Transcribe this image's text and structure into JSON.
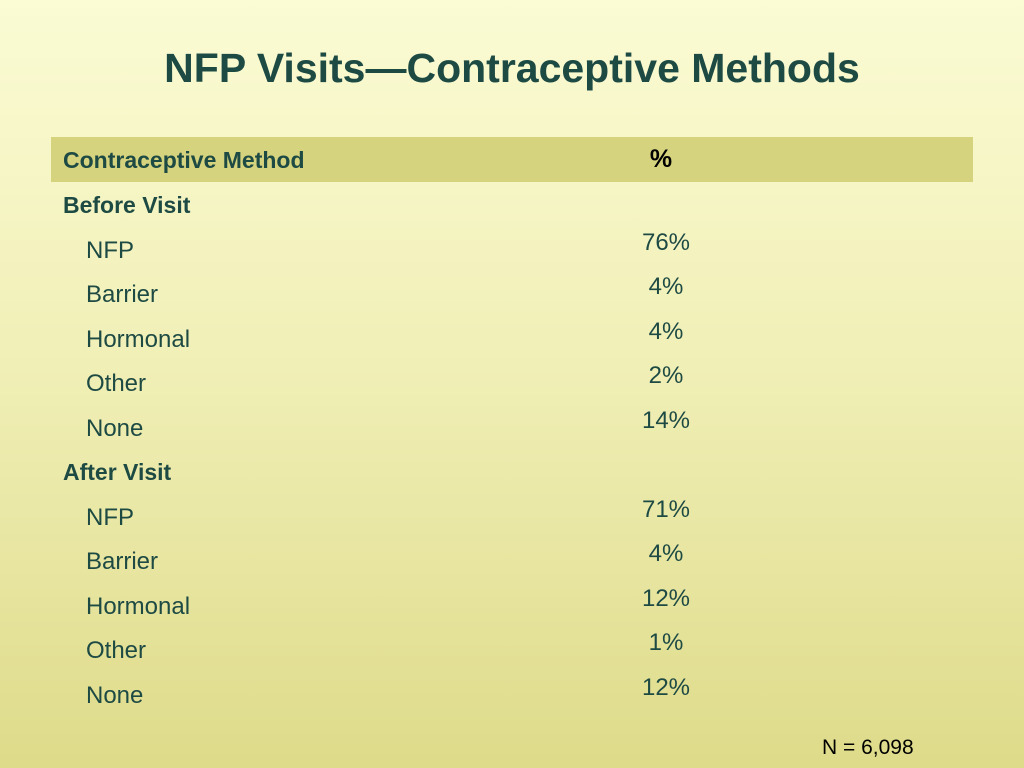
{
  "title": "NFP Visits—Contraceptive Methods",
  "table": {
    "header": {
      "method": "Contraceptive Method",
      "percent": "%"
    },
    "sections": [
      {
        "label": "Before Visit",
        "rows": [
          {
            "method": "NFP",
            "percent": "76%"
          },
          {
            "method": "Barrier",
            "percent": "4%"
          },
          {
            "method": "Hormonal",
            "percent": "4%"
          },
          {
            "method": "Other",
            "percent": "2%"
          },
          {
            "method": "None",
            "percent": "14%"
          }
        ]
      },
      {
        "label": "After Visit",
        "rows": [
          {
            "method": "NFP",
            "percent": "71%"
          },
          {
            "method": "Barrier",
            "percent": "4%"
          },
          {
            "method": "Hormonal",
            "percent": "12%"
          },
          {
            "method": "Other",
            "percent": "1%"
          },
          {
            "method": "None",
            "percent": "12%"
          }
        ]
      }
    ]
  },
  "footnote": "N = 6,098",
  "colors": {
    "title": "#1e4a44",
    "header_bg": "#d6d37e",
    "background_top": "#fbfbd4",
    "background_bottom": "#dedb8a"
  }
}
